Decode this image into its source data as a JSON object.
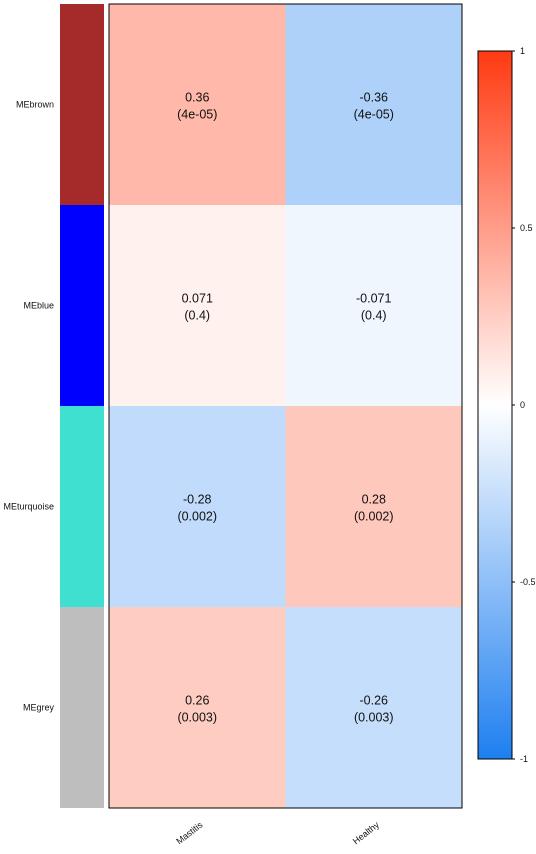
{
  "chart_data": {
    "type": "heatmap",
    "rows": [
      "MEbrown",
      "MEblue",
      "MEturquoise",
      "MEgrey"
    ],
    "row_colors": [
      "#a52a2a",
      "#0000ff",
      "#40e0d0",
      "#bebebe"
    ],
    "columns": [
      "Mastitis",
      "Healthy"
    ],
    "values": [
      [
        0.36,
        -0.36
      ],
      [
        0.071,
        -0.071
      ],
      [
        -0.28,
        0.28
      ],
      [
        0.26,
        -0.26
      ]
    ],
    "cell_labels": [
      [
        {
          "value": "0.36",
          "p": "(4e-05)"
        },
        {
          "value": "-0.36",
          "p": "(4e-05)"
        }
      ],
      [
        {
          "value": "0.071",
          "p": "(0.4)"
        },
        {
          "value": "-0.071",
          "p": "(0.4)"
        }
      ],
      [
        {
          "value": "-0.28",
          "p": "(0.002)"
        },
        {
          "value": "0.28",
          "p": "(0.002)"
        }
      ],
      [
        {
          "value": "0.26",
          "p": "(0.003)"
        },
        {
          "value": "-0.26",
          "p": "(0.003)"
        }
      ]
    ],
    "colorbar": {
      "range": [
        -1,
        1
      ],
      "ticks": [
        "1",
        "0.5",
        "0",
        "-0.5",
        "-1"
      ],
      "tick_values": [
        1,
        0.5,
        0,
        -0.5,
        -1
      ],
      "colors": {
        "negative": "#1e7ff0",
        "zero": "#ffffff",
        "positive": "#ff3a12"
      }
    }
  }
}
